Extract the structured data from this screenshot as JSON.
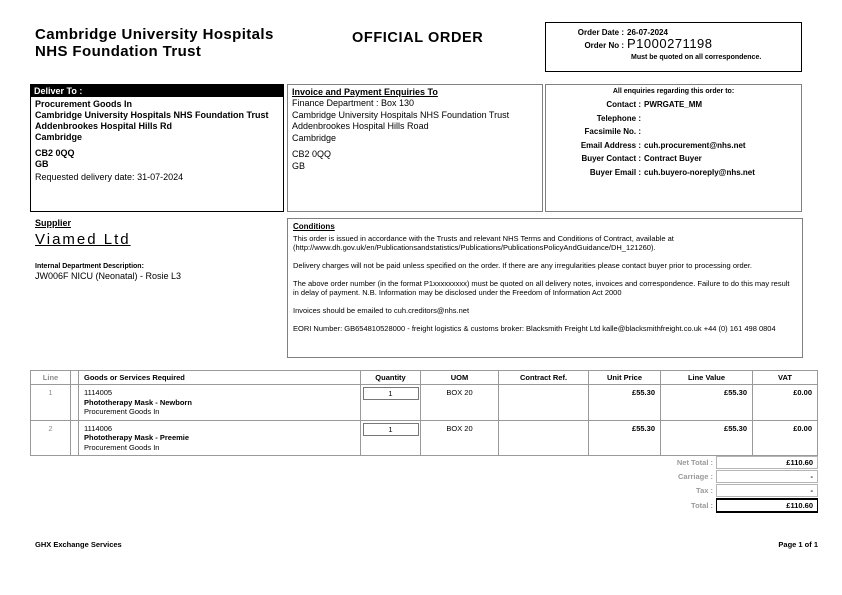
{
  "header": {
    "org_name_line1": "Cambridge University Hospitals",
    "org_name_line2": "NHS Foundation Trust",
    "doc_title": "OFFICIAL ORDER",
    "order_date_label": "Order Date :",
    "order_date": "26-07-2024",
    "order_no_label": "Order No :",
    "order_no": "P1000271198",
    "order_note": "Must be quoted on all correspondence."
  },
  "deliver_to": {
    "title": "Deliver To :",
    "lines": [
      "Procurement Goods In",
      "Cambridge University Hospitals NHS Foundation Trust",
      "Addenbrookes Hospital Hills Rd",
      "Cambridge",
      "CB2 0QQ",
      "GB"
    ],
    "requested_delivery": "Requested delivery date: 31-07-2024"
  },
  "invoice_to": {
    "title": "Invoice and Payment Enquiries To",
    "lines": [
      "Finance Department : Box 130",
      "Cambridge University Hospitals NHS Foundation Trust",
      "Addenbrookes Hospital Hills Road",
      "Cambridge",
      "CB2 0QQ",
      "GB"
    ]
  },
  "enquiries": {
    "heading": "All enquiries regarding this order to:",
    "rows": [
      {
        "label": "Contact :",
        "value": "PWRGATE_MM"
      },
      {
        "label": "Telephone :",
        "value": ""
      },
      {
        "label": "Facsimile No. :",
        "value": ""
      },
      {
        "label": "Email Address :",
        "value": "cuh.procurement@nhs.net"
      },
      {
        "label": "Buyer Contact :",
        "value": "Contract Buyer"
      },
      {
        "label": "Buyer Email :",
        "value": "cuh.buyero-noreply@nhs.net"
      }
    ]
  },
  "supplier": {
    "title": "Supplier",
    "name": "Viamed Ltd",
    "dept_label": "Internal Department Description:",
    "dept_value": "JW006F NICU (Neonatal) - Rosie L3"
  },
  "conditions": {
    "title": "Conditions",
    "paragraphs": [
      "This order is issued in accordance with the Trusts and relevant NHS Terms and Conditions of Contract, available at (http://www.dh.gov.uk/en/Publicationsandstatistics/Publications/PublicationsPolicyAndGuidance/DH_121260).",
      "Delivery charges will not be paid unless specified on the order. If there are any irregularities please contact buyer prior to processing order.",
      "The above order number (in the format P1xxxxxxxxx) must be quoted on all delivery notes, invoices and correspondence. Failure to do this may result in delay of payment. N.B. Information may be disclosed under the Freedom of Information Act 2000",
      "Invoices should be emailed to cuh.creditors@nhs.net",
      "EORI Number: GB654810528000 - freight logistics & customs broker: Blacksmith Freight Ltd kalle@blacksmithfreight.co.uk +44 (0) 161 498 0804"
    ]
  },
  "items_table": {
    "headers": [
      "Line",
      "Goods or Services Required",
      "Quantity",
      "UOM",
      "Contract Ref.",
      "Unit Price",
      "Line Value",
      "VAT"
    ],
    "rows": [
      {
        "line": "1",
        "code": "1114005",
        "description": "Phototherapy Mask - Newborn",
        "note": "Procurement Goods In",
        "quantity": "1",
        "uom": "BOX 20",
        "contract_ref": "",
        "unit_price": "£55.30",
        "line_value": "£55.30",
        "vat": "£0.00"
      },
      {
        "line": "2",
        "code": "1114006",
        "description": "Phototherapy Mask - Preemie",
        "note": "Procurement Goods In",
        "quantity": "1",
        "uom": "BOX 20",
        "contract_ref": "",
        "unit_price": "£55.30",
        "line_value": "£55.30",
        "vat": "£0.00"
      }
    ]
  },
  "totals": {
    "rows": [
      {
        "label": "Net Total :",
        "value": "£110.60"
      },
      {
        "label": "Carriage :",
        "value": "-"
      },
      {
        "label": "Tax :",
        "value": "-"
      },
      {
        "label": "Total :",
        "value": "£110.60"
      }
    ]
  },
  "footer": {
    "left": "GHX Exchange Services",
    "right": "Page 1 of 1"
  },
  "colors": {
    "header_bar_bg": "#000000",
    "header_bar_text": "#ffffff",
    "muted_text": "#8c8c8c",
    "table_border": "#9a9a9a"
  }
}
